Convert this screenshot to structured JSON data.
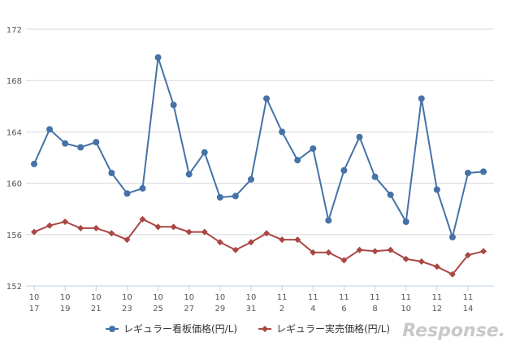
{
  "chart_data": {
    "type": "line",
    "title": "",
    "xlabel": "",
    "ylabel": "",
    "ylim": [
      152,
      172
    ],
    "y_ticks": [
      152,
      156,
      160,
      164,
      168,
      172
    ],
    "x_ticks": [
      {
        "month": "10",
        "day": "17"
      },
      {
        "month": "10",
        "day": "19"
      },
      {
        "month": "10",
        "day": "21"
      },
      {
        "month": "10",
        "day": "23"
      },
      {
        "month": "10",
        "day": "25"
      },
      {
        "month": "10",
        "day": "27"
      },
      {
        "month": "10",
        "day": "29"
      },
      {
        "month": "10",
        "day": "31"
      },
      {
        "month": "11",
        "day": "2"
      },
      {
        "month": "11",
        "day": "4"
      },
      {
        "month": "11",
        "day": "6"
      },
      {
        "month": "11",
        "day": "8"
      },
      {
        "month": "11",
        "day": "10"
      },
      {
        "month": "11",
        "day": "12"
      },
      {
        "month": "11",
        "day": "14"
      }
    ],
    "series": [
      {
        "name": "レギュラー看板価格(円/L)",
        "color": "#4572A7",
        "marker": "circle",
        "values": [
          161.5,
          164.2,
          163.1,
          162.8,
          163.2,
          160.8,
          159.2,
          159.6,
          169.8,
          166.1,
          160.7,
          162.4,
          158.9,
          159.0,
          160.3,
          166.6,
          164.0,
          161.8,
          162.7,
          157.1,
          161.0,
          163.6,
          160.5,
          159.1,
          157.0,
          166.6,
          159.5,
          155.8,
          160.8,
          160.9
        ]
      },
      {
        "name": "レギュラー実売価格(円/L)",
        "color": "#AA4643",
        "marker": "diamond",
        "values": [
          156.2,
          156.7,
          157.0,
          156.5,
          156.5,
          156.1,
          155.6,
          157.2,
          156.6,
          156.6,
          156.2,
          156.2,
          155.4,
          154.8,
          155.4,
          156.1,
          155.6,
          155.6,
          154.6,
          154.6,
          154.0,
          154.8,
          154.7,
          154.8,
          154.1,
          153.9,
          153.5,
          152.9,
          154.4,
          154.7
        ]
      }
    ],
    "legend_position": "bottom"
  },
  "watermark": "Response."
}
